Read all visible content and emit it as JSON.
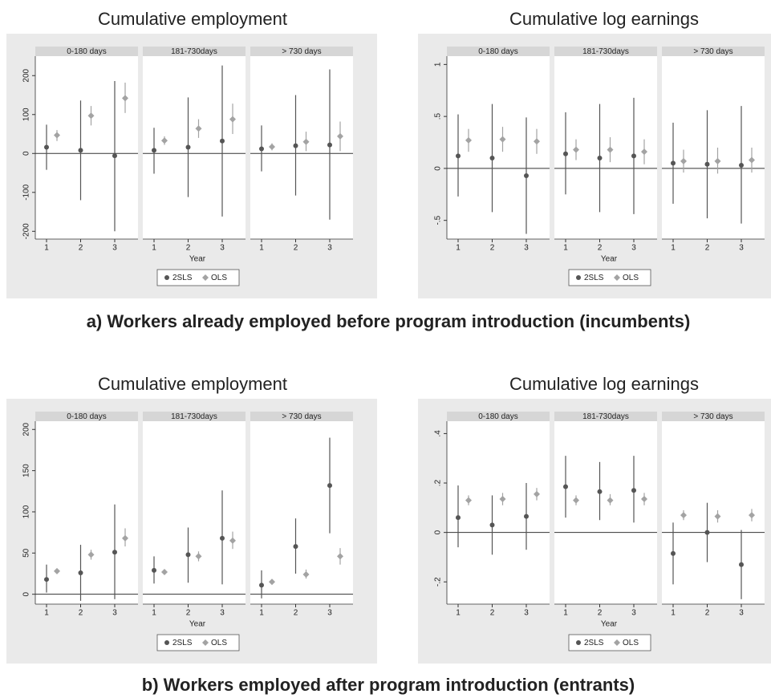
{
  "captions": [
    "a) Workers already employed before program introduction (incumbents)",
    "b) Workers employed after program introduction (entrants)"
  ],
  "chart_data": [
    {
      "type": "errorbar",
      "title": "Cumulative employment",
      "xlabel": "Year",
      "categories": [
        1,
        2,
        3
      ],
      "series": [
        {
          "name": "2SLS",
          "color": "#555555",
          "marker": "circle"
        },
        {
          "name": "OLS",
          "color": "#a3a3a3",
          "marker": "diamond"
        }
      ],
      "ylim": [
        -220,
        250
      ],
      "yticks": [
        -200,
        -100,
        0,
        100,
        200
      ],
      "facets": [
        {
          "title": "0-180 days",
          "series": [
            {
              "values": [
                16,
                8,
                -6
              ],
              "lower": [
                -42,
                -120,
                -200
              ],
              "upper": [
                74,
                136,
                186
              ]
            },
            {
              "values": [
                47,
                97,
                142
              ],
              "lower": [
                32,
                72,
                104
              ],
              "upper": [
                60,
                122,
                182
              ]
            }
          ]
        },
        {
          "title": "181-730days",
          "series": [
            {
              "values": [
                8,
                16,
                32
              ],
              "lower": [
                -52,
                -112,
                -162
              ],
              "upper": [
                66,
                144,
                226
              ]
            },
            {
              "values": [
                33,
                64,
                88
              ],
              "lower": [
                22,
                40,
                50
              ],
              "upper": [
                44,
                88,
                128
              ]
            }
          ]
        },
        {
          "title": "> 730 days",
          "series": [
            {
              "values": [
                12,
                20,
                22
              ],
              "lower": [
                -46,
                -108,
                -170
              ],
              "upper": [
                72,
                150,
                216
              ]
            },
            {
              "values": [
                17,
                30,
                44
              ],
              "lower": [
                8,
                6,
                6
              ],
              "upper": [
                26,
                56,
                82
              ]
            }
          ]
        }
      ]
    },
    {
      "type": "errorbar",
      "title": "Cumulative log earnings",
      "xlabel": "Year",
      "categories": [
        1,
        2,
        3
      ],
      "series": [
        {
          "name": "2SLS",
          "color": "#555555",
          "marker": "circle"
        },
        {
          "name": "OLS",
          "color": "#a3a3a3",
          "marker": "diamond"
        }
      ],
      "ylim": [
        -0.68,
        1.08
      ],
      "yticks": [
        {
          "value": -0.5,
          "label": "-.5"
        },
        0,
        {
          "value": 0.5,
          "label": ".5"
        },
        1
      ],
      "facets": [
        {
          "title": "0-180 days",
          "series": [
            {
              "values": [
                0.12,
                0.1,
                -0.07
              ],
              "lower": [
                -0.27,
                -0.42,
                -0.63
              ],
              "upper": [
                0.52,
                0.62,
                0.49
              ]
            },
            {
              "values": [
                0.27,
                0.28,
                0.26
              ],
              "lower": [
                0.16,
                0.16,
                0.14
              ],
              "upper": [
                0.38,
                0.4,
                0.38
              ]
            }
          ]
        },
        {
          "title": "181-730days",
          "series": [
            {
              "values": [
                0.14,
                0.1,
                0.12
              ],
              "lower": [
                -0.25,
                -0.42,
                -0.44
              ],
              "upper": [
                0.54,
                0.62,
                0.68
              ]
            },
            {
              "values": [
                0.18,
                0.18,
                0.16
              ],
              "lower": [
                0.08,
                0.06,
                0.04
              ],
              "upper": [
                0.28,
                0.3,
                0.28
              ]
            }
          ]
        },
        {
          "title": "> 730 days",
          "series": [
            {
              "values": [
                0.05,
                0.04,
                0.03
              ],
              "lower": [
                -0.34,
                -0.48,
                -0.53
              ],
              "upper": [
                0.44,
                0.56,
                0.6
              ]
            },
            {
              "values": [
                0.07,
                0.07,
                0.08
              ],
              "lower": [
                -0.04,
                -0.05,
                -0.04
              ],
              "upper": [
                0.18,
                0.2,
                0.2
              ]
            }
          ]
        }
      ]
    },
    {
      "type": "errorbar",
      "title": "Cumulative employment",
      "xlabel": "Year",
      "categories": [
        1,
        2,
        3
      ],
      "series": [
        {
          "name": "2SLS",
          "color": "#555555",
          "marker": "circle"
        },
        {
          "name": "OLS",
          "color": "#a3a3a3",
          "marker": "diamond"
        }
      ],
      "ylim": [
        -12,
        210
      ],
      "yticks": [
        0,
        50,
        100,
        150,
        200
      ],
      "facets": [
        {
          "title": "0-180 days",
          "series": [
            {
              "values": [
                18,
                26,
                51
              ],
              "lower": [
                2,
                -8,
                -6
              ],
              "upper": [
                36,
                60,
                109
              ]
            },
            {
              "values": [
                28,
                48,
                68
              ],
              "lower": [
                26,
                42,
                58
              ],
              "upper": [
                31,
                54,
                80
              ]
            }
          ]
        },
        {
          "title": "181-730days",
          "series": [
            {
              "values": [
                29,
                48,
                68
              ],
              "lower": [
                13,
                14,
                12
              ],
              "upper": [
                46,
                81,
                126
              ]
            },
            {
              "values": [
                27,
                46,
                65
              ],
              "lower": [
                25,
                40,
                55
              ],
              "upper": [
                29,
                52,
                76
              ]
            }
          ]
        },
        {
          "title": "> 730 days",
          "series": [
            {
              "values": [
                11,
                58,
                132
              ],
              "lower": [
                -5,
                25,
                74
              ],
              "upper": [
                29,
                92,
                190
              ]
            },
            {
              "values": [
                15,
                24,
                46
              ],
              "lower": [
                13,
                19,
                36
              ],
              "upper": [
                17,
                30,
                56
              ]
            }
          ]
        }
      ]
    },
    {
      "type": "errorbar",
      "title": "Cumulative log earnings",
      "xlabel": "Year",
      "categories": [
        1,
        2,
        3
      ],
      "series": [
        {
          "name": "2SLS",
          "color": "#555555",
          "marker": "circle"
        },
        {
          "name": "OLS",
          "color": "#a3a3a3",
          "marker": "diamond"
        }
      ],
      "ylim": [
        -0.29,
        0.45
      ],
      "yticks": [
        {
          "value": -0.2,
          "label": "-.2"
        },
        0,
        {
          "value": 0.2,
          "label": ".2"
        },
        {
          "value": 0.4,
          "label": ".4"
        }
      ],
      "facets": [
        {
          "title": "0-180 days",
          "series": [
            {
              "values": [
                0.06,
                0.03,
                0.065
              ],
              "lower": [
                -0.06,
                -0.09,
                -0.07
              ],
              "upper": [
                0.19,
                0.15,
                0.2
              ]
            },
            {
              "values": [
                0.13,
                0.135,
                0.155
              ],
              "lower": [
                0.11,
                0.11,
                0.13
              ],
              "upper": [
                0.15,
                0.16,
                0.18
              ]
            }
          ]
        },
        {
          "title": "181-730days",
          "series": [
            {
              "values": [
                0.185,
                0.165,
                0.17
              ],
              "lower": [
                0.06,
                0.05,
                0.04
              ],
              "upper": [
                0.31,
                0.285,
                0.31
              ]
            },
            {
              "values": [
                0.13,
                0.13,
                0.135
              ],
              "lower": [
                0.11,
                0.11,
                0.11
              ],
              "upper": [
                0.15,
                0.155,
                0.16
              ]
            }
          ]
        },
        {
          "title": "> 730 days",
          "series": [
            {
              "values": [
                -0.085,
                0,
                -0.13
              ],
              "lower": [
                -0.21,
                -0.12,
                -0.27
              ],
              "upper": [
                0.04,
                0.12,
                0.01
              ]
            },
            {
              "values": [
                0.07,
                0.065,
                0.07
              ],
              "lower": [
                0.05,
                0.04,
                0.045
              ],
              "upper": [
                0.09,
                0.09,
                0.095
              ]
            }
          ]
        }
      ]
    }
  ]
}
